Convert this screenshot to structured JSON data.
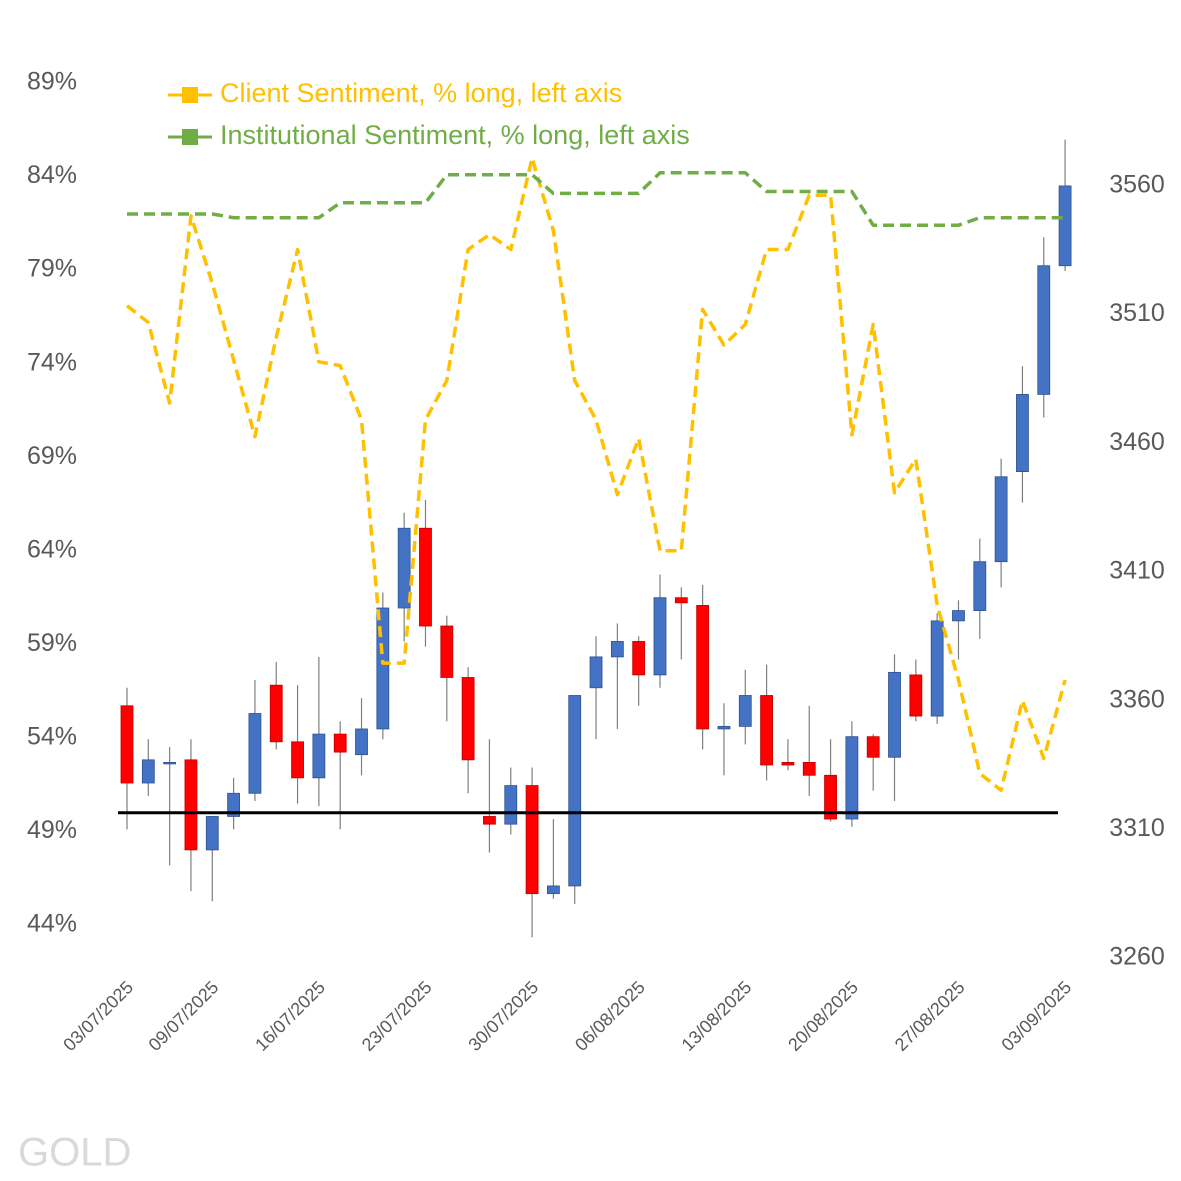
{
  "chart_data": {
    "type": "candlestick",
    "label": "GOLD",
    "categories": [
      "03/07/2025",
      null,
      null,
      null,
      "09/07/2025",
      null,
      null,
      null,
      null,
      "16/07/2025",
      null,
      null,
      null,
      null,
      "23/07/2025",
      null,
      null,
      null,
      null,
      "30/07/2025",
      null,
      null,
      null,
      null,
      "06/08/2025",
      null,
      null,
      null,
      null,
      "13/08/2025",
      null,
      null,
      null,
      null,
      "20/08/2025",
      null,
      null,
      null,
      null,
      "27/08/2025",
      null,
      null,
      null,
      null,
      "03/09/2025"
    ],
    "candles": {
      "axis": "y2",
      "up_color": "#4472c4",
      "down_color": "#ff0000",
      "open": [
        3358,
        3328,
        3336,
        3337,
        3302,
        3315,
        3324,
        3366,
        3344,
        3330,
        3347,
        3339,
        3349,
        3396,
        3427,
        3389,
        3369,
        3315,
        3312,
        3327,
        3285,
        3288,
        3365,
        3377,
        3383,
        3370,
        3400,
        3397,
        3349,
        3350,
        3362,
        3336,
        3336,
        3331,
        3314,
        3346,
        3338,
        3370,
        3354,
        3391,
        3395,
        3414,
        3449,
        3479,
        3529
      ],
      "high": [
        3365,
        3345,
        3342,
        3345,
        3315,
        3330,
        3368,
        3375,
        3366,
        3377,
        3352,
        3361,
        3402,
        3433,
        3438,
        3393,
        3373,
        3345,
        3334,
        3334,
        3314,
        3362,
        3385,
        3390,
        3385,
        3409,
        3404,
        3405,
        3359,
        3372,
        3374,
        3345,
        3358,
        3345,
        3352,
        3347,
        3378,
        3376,
        3394,
        3399,
        3423,
        3454,
        3490,
        3540,
        3578
      ],
      "low": [
        3310,
        3323,
        3296,
        3286,
        3282,
        3310,
        3321,
        3341,
        3320,
        3319,
        3310,
        3331,
        3345,
        3383,
        3381,
        3352,
        3324,
        3301,
        3308,
        3268,
        3283,
        3281,
        3345,
        3349,
        3358,
        3365,
        3376,
        3341,
        3331,
        3343,
        3329,
        3333,
        3323,
        3313,
        3311,
        3325,
        3321,
        3352,
        3351,
        3376,
        3384,
        3404,
        3437,
        3470,
        3527
      ],
      "close": [
        3328,
        3337,
        3336,
        3302,
        3315,
        3324,
        3355,
        3344,
        3330,
        3347,
        3340,
        3349,
        3396,
        3427,
        3389,
        3369,
        3337,
        3312,
        3327,
        3285,
        3288,
        3362,
        3377,
        3383,
        3370,
        3400,
        3398,
        3349,
        3350,
        3362,
        3335,
        3335,
        3331,
        3314,
        3346,
        3338,
        3371,
        3354,
        3391,
        3395,
        3414,
        3447,
        3479,
        3529,
        3560
      ]
    },
    "series": [
      {
        "name": "Client Sentiment, % long, left axis",
        "color": "#ffc000",
        "axis": "y",
        "values": [
          77.1,
          76.2,
          71.9,
          81.9,
          78.3,
          74.2,
          70.1,
          75.4,
          80.1,
          74.1,
          73.9,
          71.0,
          58.0,
          58.0,
          71.0,
          73.1,
          80.1,
          80.9,
          80.1,
          85.0,
          81.1,
          73.1,
          71.0,
          67.0,
          70.0,
          64.0,
          64.0,
          76.9,
          75.0,
          76.1,
          80.1,
          80.1,
          83.0,
          83.0,
          70.2,
          76.1,
          67.1,
          68.9,
          61.1,
          57.1,
          52.1,
          51.2,
          56.0,
          52.9,
          57.1
        ]
      },
      {
        "name": "Institutional Sentiment, % long, left axis",
        "color": "#70ad47",
        "axis": "y",
        "values": [
          82.0,
          82.0,
          82.0,
          82.0,
          82.0,
          81.8,
          81.8,
          81.8,
          81.8,
          81.8,
          82.6,
          82.6,
          82.6,
          82.6,
          82.6,
          84.1,
          84.1,
          84.1,
          84.1,
          84.1,
          83.1,
          83.1,
          83.1,
          83.1,
          83.1,
          84.2,
          84.2,
          84.2,
          84.2,
          84.2,
          83.2,
          83.2,
          83.2,
          83.2,
          83.2,
          81.4,
          81.4,
          81.4,
          81.4,
          81.4,
          81.8,
          81.8,
          81.8,
          81.8,
          81.8
        ]
      }
    ],
    "reference_line": 50,
    "reference_color": "#000000",
    "legend": "top-left",
    "ylim": [
      42.24,
      89
    ],
    "yticks": [
      {
        "value": 44,
        "label": "44%"
      },
      {
        "value": 49,
        "label": "49%"
      },
      {
        "value": 54,
        "label": "54%"
      },
      {
        "value": 59,
        "label": "59%"
      },
      {
        "value": 64,
        "label": "64%"
      },
      {
        "value": 69,
        "label": "69%"
      },
      {
        "value": 74,
        "label": "74%"
      },
      {
        "value": 79,
        "label": "79%"
      },
      {
        "value": 84,
        "label": "84%"
      },
      {
        "value": 89,
        "label": "89%"
      }
    ],
    "y2lim": [
      3260,
      3600
    ],
    "y2ticks": [
      3260,
      3310,
      3360,
      3410,
      3460,
      3510,
      3560
    ]
  }
}
